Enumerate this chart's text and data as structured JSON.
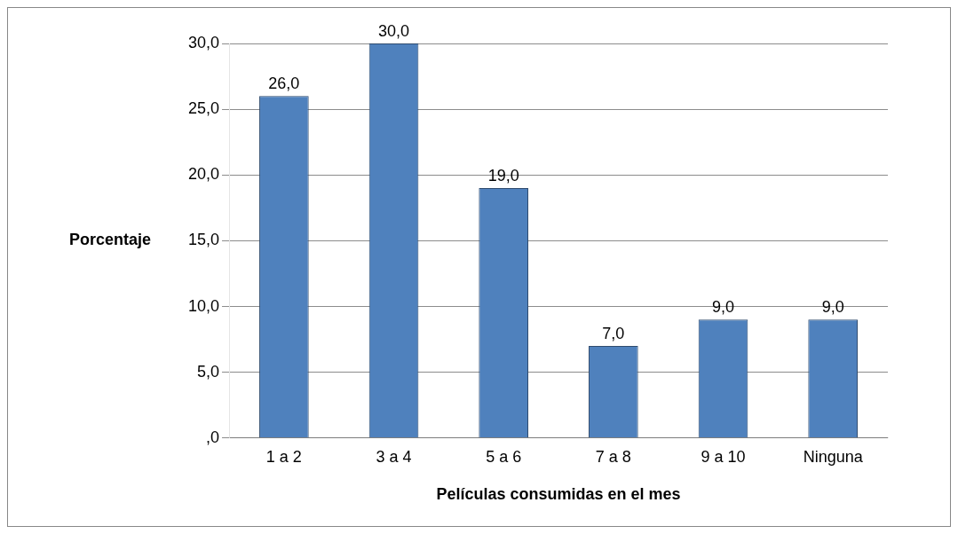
{
  "chart_data": {
    "type": "bar",
    "xlabel": "Películas consumidas en el mes",
    "ylabel": "Porcentaje",
    "categories": [
      "1 a 2",
      "3 a 4",
      "5 a 6",
      "7 a 8",
      "9 a 10",
      "Ninguna"
    ],
    "values": [
      26,
      30,
      19,
      7,
      9,
      9
    ],
    "value_labels": [
      "26,0",
      "30,0",
      "19,0",
      "7,0",
      "9,0",
      "9,0"
    ],
    "color": "#4f81bd",
    "ylim": [
      0,
      30
    ],
    "yticks": [
      {
        "value": 0,
        "label": ",0"
      },
      {
        "value": 5,
        "label": "5,0"
      },
      {
        "value": 10,
        "label": "10,0"
      },
      {
        "value": 15,
        "label": "15,0"
      },
      {
        "value": 20,
        "label": "20,0"
      },
      {
        "value": 25,
        "label": "25,0"
      },
      {
        "value": 30,
        "label": "30,0"
      }
    ],
    "grid": "y",
    "legend": false
  }
}
